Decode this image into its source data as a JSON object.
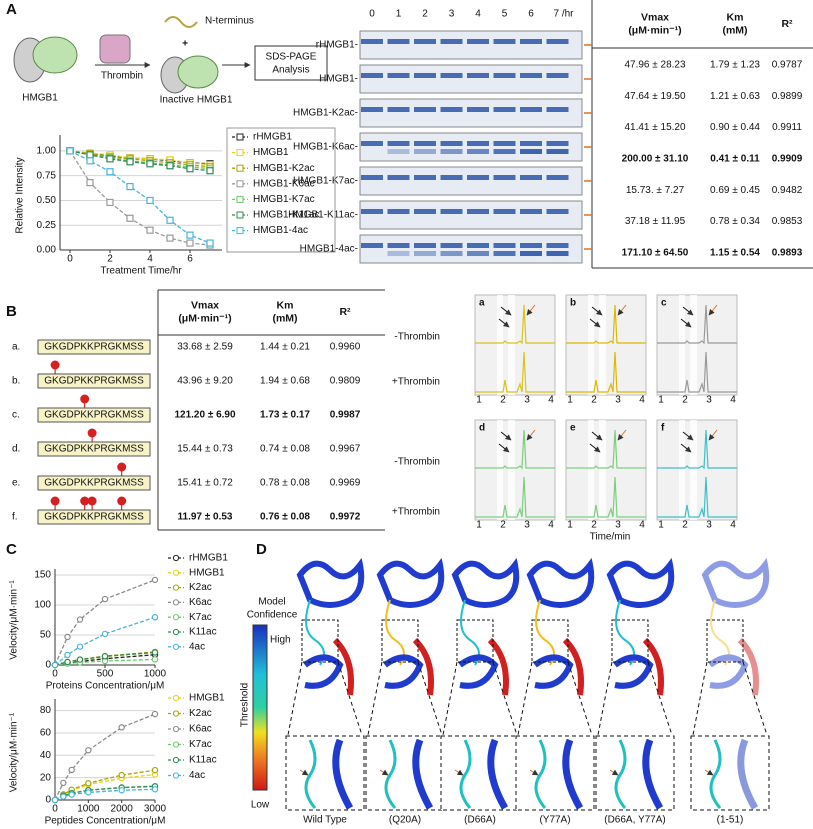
{
  "panel_letters": [
    "A",
    "B",
    "C",
    "D"
  ],
  "scheme": {
    "protein": "HMGB1",
    "enzyme": "Thrombin",
    "fragment": "N-terminus",
    "plus": "+",
    "product": "Inactive HMGB1",
    "analysis": [
      "SDS-PAGE",
      "Analysis"
    ]
  },
  "gel": {
    "time_labels": [
      "0",
      "1",
      "2",
      "3",
      "4",
      "5",
      "6",
      "7 /hr"
    ],
    "lanes": [
      "rHMGB1-",
      "HMGB1-",
      "HMGB1-K2ac-",
      "HMGB1-K6ac-",
      "HMGB1-K7ac-",
      "HMGB1-K11ac-",
      "HMGB1-4ac-"
    ]
  },
  "table_a": {
    "headers": [
      [
        "Vmax",
        "(μM·min⁻¹)"
      ],
      [
        "Km",
        "(mM)"
      ],
      [
        "R²"
      ]
    ],
    "rows": [
      {
        "cells": [
          "47.96 ± 28.23",
          "1.79 ± 1.23",
          "0.9787"
        ],
        "bold": false
      },
      {
        "cells": [
          "47.64 ± 19.50",
          "1.21 ± 0.63",
          "0.9899"
        ],
        "bold": false
      },
      {
        "cells": [
          "41.41 ± 15.20",
          "0.90 ± 0.44",
          "0.9911"
        ],
        "bold": false
      },
      {
        "cells": [
          "200.00 ± 31.10",
          "0.41 ± 0.11",
          "0.9909"
        ],
        "bold": true
      },
      {
        "cells": [
          "15.73. ± 7.27",
          "0.69 ± 0.45",
          "0.9482"
        ],
        "bold": false
      },
      {
        "cells": [
          "37.18 ± 11.95",
          "0.78 ± 0.34",
          "0.9853"
        ],
        "bold": false
      },
      {
        "cells": [
          "171.10 ± 64.50",
          "1.15 ± 0.54",
          "0.9893"
        ],
        "bold": true
      }
    ]
  },
  "table_b": {
    "headers": [
      [
        "Vmax",
        "(μM·min⁻¹)"
      ],
      [
        "Km",
        "(mM)"
      ],
      [
        "R²"
      ]
    ],
    "rows": [
      {
        "label": "a.",
        "peptide": "GKGDPKKPRGKMSS",
        "cells": [
          "33.68 ± 2.59",
          "1.44 ± 0.21",
          "0.9960"
        ],
        "bold": false
      },
      {
        "label": "b.",
        "peptide": "GKGDPKKPRGKMSS",
        "cells": [
          "43.96 ± 9.20",
          "1.94 ± 0.68",
          "0.9809"
        ],
        "bold": false
      },
      {
        "label": "c.",
        "peptide": "GKGDPKKPRGKMSS",
        "cells": [
          "121.20 ± 6.90",
          "1.73 ± 0.17",
          "0.9987"
        ],
        "bold": true
      },
      {
        "label": "d.",
        "peptide": "GKGDPKKPRGKMSS",
        "cells": [
          "15.44 ± 0.73",
          "0.74 ± 0.08",
          "0.9967"
        ],
        "bold": false
      },
      {
        "label": "e.",
        "peptide": "GKGDPKKPRGKMSS",
        "cells": [
          "15.41 ± 0.72",
          "0.78 ± 0.08",
          "0.9969"
        ],
        "bold": false
      },
      {
        "label": "f.",
        "peptide": "GKGDPKKPRGKMSS",
        "cells": [
          "11.97 ± 0.53",
          "0.76 ± 0.08",
          "0.9972"
        ],
        "bold": true
      }
    ]
  },
  "chromatograms": {
    "panels": [
      "a",
      "b",
      "c",
      "d",
      "e",
      "f"
    ],
    "conditions": [
      "-Thrombin",
      "+Thrombin"
    ],
    "x_ticks": [
      1,
      2,
      3,
      4
    ],
    "x_label": "Time/min"
  },
  "structures": {
    "legend_title": [
      "Model",
      "Confidence"
    ],
    "high": "High",
    "scale_label": "Threshold",
    "low": "Low",
    "captions": [
      "Wild Type",
      "(Q20A)",
      "(D66A)",
      "(Y77A)",
      "(D66A, Y77A)",
      "(1-51)"
    ]
  },
  "chart_data": [
    {
      "type": "line",
      "x_label": "Treatment Time/hr",
      "y_label": "Relative Intensity",
      "x": [
        0,
        1,
        2,
        3,
        4,
        5,
        6,
        7
      ],
      "xlim": [
        -0.5,
        7.6
      ],
      "xticks": [
        0,
        2,
        4,
        6
      ],
      "ylim": [
        0,
        1.1
      ],
      "yticks": [
        {
          "value": 0,
          "label": "0.00"
        },
        {
          "value": 0.25,
          "label": "0.25"
        },
        {
          "value": 0.5,
          "label": "0.50"
        },
        {
          "value": 0.75,
          "label": "0.75"
        },
        {
          "value": 1,
          "label": "1.00"
        }
      ],
      "grid": true,
      "marker": "square",
      "legend": "right",
      "series": [
        {
          "name": "rHMGB1",
          "color": "#222222",
          "values": [
            1,
            0.97,
            0.95,
            0.93,
            0.92,
            0.9,
            0.88,
            0.87
          ]
        },
        {
          "name": "HMGB1",
          "color": "#e6cf1c",
          "values": [
            1,
            0.98,
            0.96,
            0.93,
            0.92,
            0.91,
            0.88,
            0.86
          ]
        },
        {
          "name": "HMGB1-K2ac",
          "color": "#a9a400",
          "values": [
            1,
            0.97,
            0.94,
            0.92,
            0.9,
            0.88,
            0.86,
            0.84
          ]
        },
        {
          "name": "HMGB1-K6ac",
          "color": "#9a9a9a",
          "values": [
            1,
            0.68,
            0.48,
            0.32,
            0.2,
            0.12,
            0.07,
            0.05
          ]
        },
        {
          "name": "HMGB1-K7ac",
          "color": "#6acb6a",
          "values": [
            1,
            0.96,
            0.93,
            0.9,
            0.88,
            0.86,
            0.84,
            0.82
          ]
        },
        {
          "name": "HMGB1-K11ac",
          "color": "#2e8b57",
          "values": [
            1,
            0.96,
            0.92,
            0.89,
            0.87,
            0.85,
            0.82,
            0.8
          ]
        },
        {
          "name": "HMGB1-4ac",
          "color": "#45b5dc",
          "values": [
            1,
            0.9,
            0.79,
            0.64,
            0.5,
            0.3,
            0.15,
            0.07
          ]
        }
      ]
    },
    {
      "type": "line",
      "x_label": "Proteins Concentration/μM",
      "y_label": "Velocity/μM·min⁻¹",
      "x": [
        0,
        125,
        250,
        500,
        1000
      ],
      "xlim": [
        0,
        1000
      ],
      "xticks": [
        0,
        500,
        1000
      ],
      "ylim": [
        0,
        150
      ],
      "yticks": [
        0,
        50,
        100,
        150
      ],
      "grid": true,
      "marker": "circle",
      "legend": "right",
      "series": [
        {
          "name": "rHMGB1",
          "color": "#222222",
          "values": [
            0,
            3.1,
            5.9,
            10.5,
            17.2
          ]
        },
        {
          "name": "HMGB1",
          "color": "#e6cf1c",
          "values": [
            0,
            4.5,
            8.2,
            13.9,
            21.6
          ]
        },
        {
          "name": "K2ac",
          "color": "#a9a400",
          "values": [
            0,
            5.1,
            9.0,
            14.8,
            21.8
          ]
        },
        {
          "name": "K6ac",
          "color": "#8a8a8a",
          "values": [
            0,
            46.7,
            75.8,
            109.9,
            141.8
          ]
        },
        {
          "name": "K7ac",
          "color": "#6acb6a",
          "values": [
            0,
            2.4,
            4.2,
            6.6,
            9.3
          ]
        },
        {
          "name": "K11ac",
          "color": "#2e8b57",
          "values": [
            0,
            5.1,
            9.0,
            14.5,
            20.9
          ]
        },
        {
          "name": "4ac",
          "color": "#45b5dc",
          "values": [
            0,
            16.8,
            30.6,
            51.8,
            79.6
          ]
        }
      ]
    },
    {
      "type": "line",
      "x_label": "Peptides Concentration/μM",
      "y_label": "Velocity/μM·min⁻¹",
      "x": [
        0,
        250,
        500,
        1000,
        2000,
        3000
      ],
      "xlim": [
        0,
        3000
      ],
      "xticks": [
        0,
        1000,
        2000,
        3000
      ],
      "ylim": [
        0,
        85
      ],
      "yticks": [
        0,
        20,
        40,
        60,
        80
      ],
      "grid": true,
      "marker": "circle",
      "legend": "right",
      "series": [
        {
          "name": "HMGB1",
          "color": "#e6cf1c",
          "values": [
            0,
            5.0,
            8.7,
            13.8,
            19.6,
            22.8
          ]
        },
        {
          "name": "K2ac",
          "color": "#a9a400",
          "values": [
            0,
            5.0,
            9.2,
            15.0,
            22.3,
            26.7
          ]
        },
        {
          "name": "K6ac",
          "color": "#8a8a8a",
          "values": [
            0,
            15.3,
            26.9,
            44.5,
            65.0,
            76.9
          ]
        },
        {
          "name": "K7ac",
          "color": "#6acb6a",
          "values": [
            0,
            3.9,
            6.2,
            8.9,
            11.3,
            12.4
          ]
        },
        {
          "name": "K11ac",
          "color": "#2e8b57",
          "values": [
            0,
            3.7,
            6.0,
            8.7,
            11.1,
            12.2
          ]
        },
        {
          "name": "4ac",
          "color": "#45b5dc",
          "values": [
            0,
            3.0,
            4.8,
            6.8,
            8.7,
            9.6
          ]
        }
      ]
    }
  ]
}
